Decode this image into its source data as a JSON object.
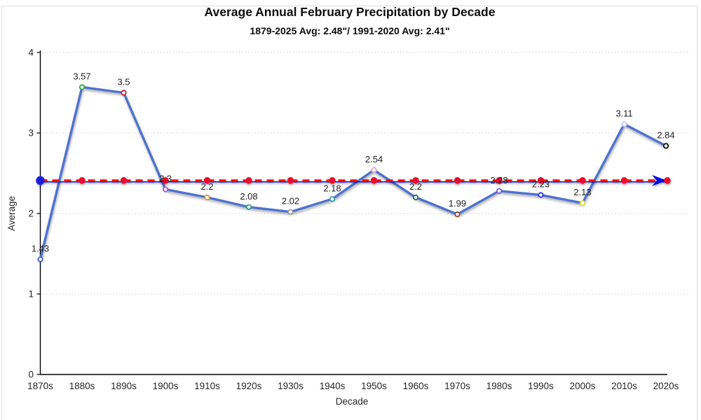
{
  "header": {
    "title": "Average Annual February Precipitation by Decade",
    "subtitle": "1879-2025 Avg: 2.48\"/ 1991-2020 Avg: 2.41\""
  },
  "colors": {
    "main_line": "#4D72CE",
    "avg_red": "#FF0D0D",
    "avg_blue": "#1414CC",
    "avg_dot": "#E8112D",
    "start_dot": "#1A1AE0",
    "arrow": "#0010E0",
    "grid": "#cfcfcf",
    "axis": "#000000",
    "label_text": "#1f1f1f",
    "tick_text": "#262626"
  },
  "chart_data": {
    "type": "line",
    "title": "Average Annual February Precipitation by Decade",
    "subtitle": "1879-2025 Avg: 2.48\"/ 1991-2020 Avg: 2.41\"",
    "xlabel": "Decade",
    "ylabel": "Average",
    "ylim": [
      0,
      4
    ],
    "yticks": [
      0,
      1,
      2,
      3,
      4
    ],
    "grid": "dotted-horizontal",
    "legend_position": "none",
    "categories": [
      "1870s",
      "1880s",
      "1890s",
      "1900s",
      "1910s",
      "1920s",
      "1930s",
      "1940s",
      "1950s",
      "1960s",
      "1970s",
      "1980s",
      "1990s",
      "2000s",
      "2010s",
      "2020s"
    ],
    "series": [
      {
        "name": "decade-average-precipitation",
        "type": "line",
        "color": "#4D72CE",
        "values": [
          1.43,
          3.57,
          3.5,
          2.3,
          2.2,
          2.08,
          2.02,
          2.18,
          2.54,
          2.2,
          1.99,
          2.28,
          2.23,
          2.13,
          3.11,
          2.84
        ],
        "labels": [
          "1.43",
          "3.57",
          "3.5",
          "2.3",
          "2.2",
          "2.08",
          "2.02",
          "2.18",
          "2.54",
          "2.2",
          "1.99",
          "2.28",
          "2.23",
          "2.13",
          "3.11",
          "2.84"
        ],
        "marker_colors": [
          "#3A5FDB",
          "#35A93C",
          "#C02038",
          "#B055C8",
          "#E8953C",
          "#2B9D8F",
          "#9A9A9A",
          "#38A3A0",
          "#E9A9B8",
          "#20705C",
          "#8C4A2B",
          "#7A5BD8",
          "#2633D8",
          "#E2DC4A",
          "#C9C7EA",
          "#101010"
        ]
      },
      {
        "name": "average-reference-red-dashed",
        "type": "reference-line",
        "value": 2.41,
        "style": "dashed",
        "color": "#FF0D0D",
        "dot_color": "#E8112D",
        "start_marker": "blue-circle",
        "end_marker": "blue-arrow-and-red-circle"
      },
      {
        "name": "average-reference-blue-thin",
        "type": "reference-line",
        "value": 2.41,
        "style": "thin-dashed",
        "color": "#1414CC"
      }
    ]
  }
}
